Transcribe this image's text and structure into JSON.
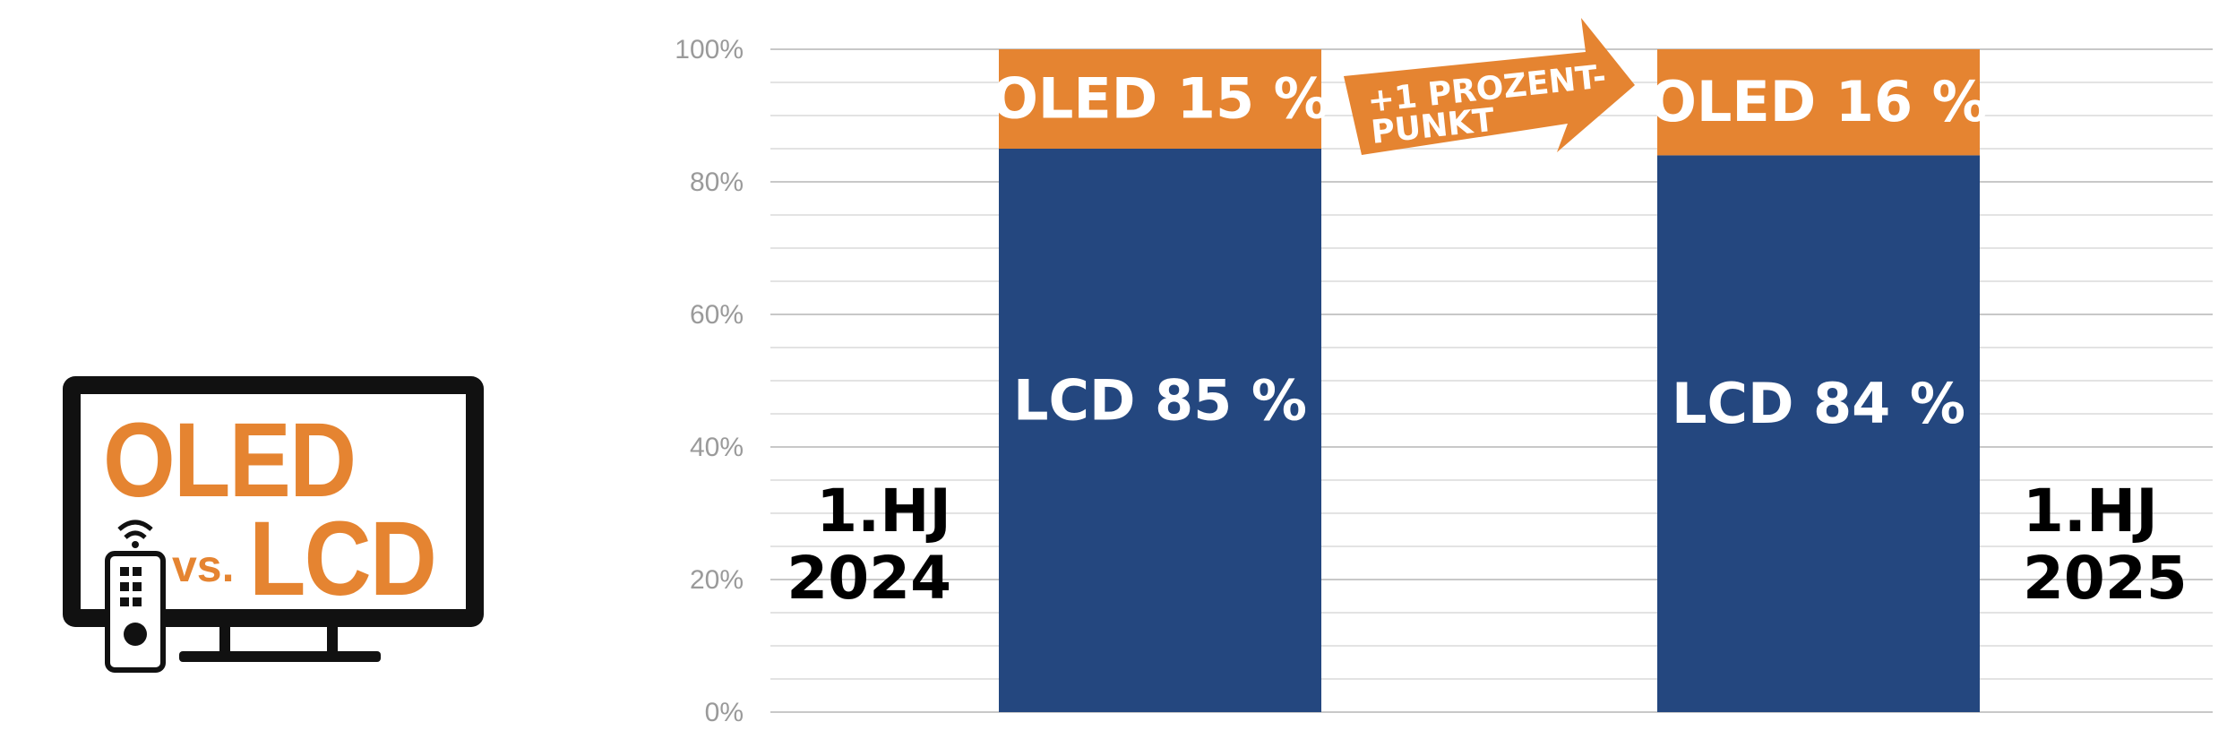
{
  "logo": {
    "word_top": "OLED",
    "word_vs": "vs.",
    "word_bottom": "LCD"
  },
  "colors": {
    "lcd": "#24477f",
    "oled": "#e58431",
    "grid_major": "#c8c8c8",
    "grid_minor": "#e3e3e3",
    "axis_text": "#9a9a9a"
  },
  "chart_data": {
    "type": "bar",
    "stacked": true,
    "categories": [
      {
        "line1": "1.HJ",
        "line2": "2024"
      },
      {
        "line1": "1.HJ",
        "line2": "2025"
      }
    ],
    "series": [
      {
        "name": "LCD",
        "values": [
          85,
          84
        ],
        "labels": [
          "LCD 85 %",
          "LCD 84 %"
        ]
      },
      {
        "name": "OLED",
        "values": [
          15,
          16
        ],
        "labels": [
          "OLED 15 %",
          "OLED 16 %"
        ]
      }
    ],
    "ylim": [
      0,
      100
    ],
    "yticks": [
      "0%",
      "20%",
      "40%",
      "60%",
      "80%",
      "100%"
    ],
    "annotation": {
      "line1": "+1 PROZENT-",
      "line2": "PUNKT"
    },
    "grid": true,
    "legend": "none"
  }
}
